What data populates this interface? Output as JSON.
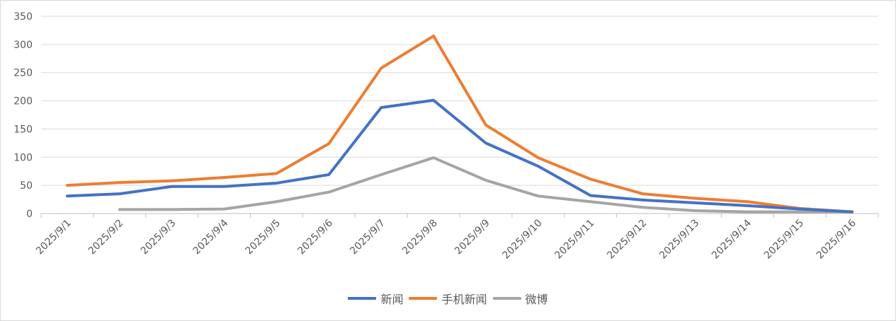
{
  "chart_data": {
    "type": "line",
    "title": "",
    "xlabel": "",
    "ylabel": "",
    "ylim": [
      0,
      350
    ],
    "yticks": [
      0,
      50,
      100,
      150,
      200,
      250,
      300,
      350
    ],
    "grid": true,
    "legend_position": "bottom",
    "categories": [
      "2025/9/1",
      "2025/9/2",
      "2025/9/3",
      "2025/9/4",
      "2025/9/5",
      "2025/9/6",
      "2025/9/7",
      "2025/9/8",
      "2025/9/9",
      "2025/9/10",
      "2025/9/11",
      "2025/9/12",
      "2025/9/13",
      "2025/9/14",
      "2025/9/15",
      "2025/9/16"
    ],
    "series": [
      {
        "name": "新闻",
        "color": "#4472C4",
        "values": [
          31,
          35,
          48,
          48,
          54,
          69,
          188,
          201,
          125,
          84,
          32,
          24,
          19,
          14,
          8,
          3
        ]
      },
      {
        "name": "手机新闻",
        "color": "#ED7D31",
        "values": [
          50,
          55,
          58,
          64,
          71,
          124,
          258,
          315,
          157,
          99,
          61,
          35,
          27,
          21,
          9,
          3
        ]
      },
      {
        "name": "微博",
        "color": "#A5A5A5",
        "values": [
          null,
          7,
          7,
          8,
          21,
          38,
          69,
          99,
          59,
          31,
          21,
          11,
          5,
          3,
          3,
          3
        ]
      }
    ]
  }
}
